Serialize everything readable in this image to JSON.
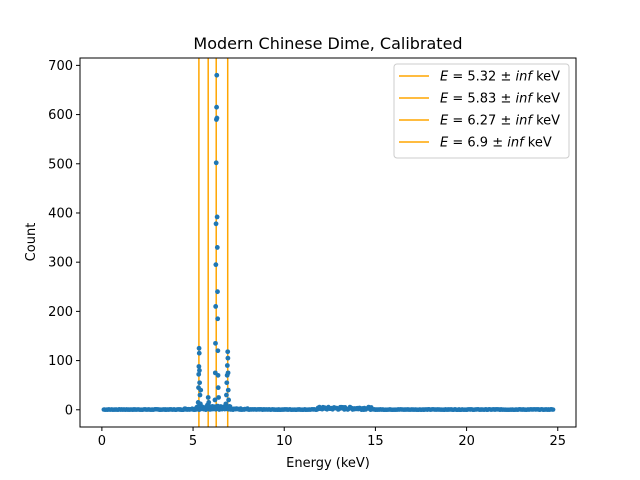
{
  "chart_data": {
    "type": "scatter",
    "title": "Modern Chinese Dime, Calibrated",
    "xlabel": "Energy (keV)",
    "ylabel": "Count",
    "xlim": [
      -1.2,
      26.0
    ],
    "ylim": [
      -35,
      715
    ],
    "xticks": [
      0,
      5,
      10,
      15,
      20,
      25
    ],
    "yticks": [
      0,
      100,
      200,
      300,
      400,
      500,
      600,
      700
    ],
    "grid": false,
    "legend_position": "top-right",
    "point_color": "#1f77b4",
    "line_color": "#ffa500",
    "vlines": [
      {
        "x": 5.32,
        "label": "E = 5.32 ± inf keV"
      },
      {
        "x": 5.83,
        "label": "E = 5.83 ± inf keV"
      },
      {
        "x": 6.27,
        "label": "E = 6.27 ± inf keV"
      },
      {
        "x": 6.9,
        "label": "E = 6.9 ± inf keV"
      }
    ],
    "peak_points": [
      {
        "x": 5.28,
        "y": 15
      },
      {
        "x": 5.3,
        "y": 45
      },
      {
        "x": 5.31,
        "y": 72
      },
      {
        "x": 5.32,
        "y": 88
      },
      {
        "x": 5.33,
        "y": 125
      },
      {
        "x": 5.34,
        "y": 115
      },
      {
        "x": 5.35,
        "y": 80
      },
      {
        "x": 5.36,
        "y": 55
      },
      {
        "x": 5.38,
        "y": 30
      },
      {
        "x": 5.4,
        "y": 12
      },
      {
        "x": 5.42,
        "y": 40
      },
      {
        "x": 5.8,
        "y": 10
      },
      {
        "x": 5.83,
        "y": 25
      },
      {
        "x": 5.86,
        "y": 15
      },
      {
        "x": 6.2,
        "y": 20
      },
      {
        "x": 6.22,
        "y": 75
      },
      {
        "x": 6.23,
        "y": 135
      },
      {
        "x": 6.24,
        "y": 210
      },
      {
        "x": 6.25,
        "y": 295
      },
      {
        "x": 6.26,
        "y": 378
      },
      {
        "x": 6.27,
        "y": 502
      },
      {
        "x": 6.28,
        "y": 590
      },
      {
        "x": 6.29,
        "y": 615
      },
      {
        "x": 6.3,
        "y": 680
      },
      {
        "x": 6.31,
        "y": 593
      },
      {
        "x": 6.32,
        "y": 392
      },
      {
        "x": 6.33,
        "y": 330
      },
      {
        "x": 6.34,
        "y": 240
      },
      {
        "x": 6.35,
        "y": 185
      },
      {
        "x": 6.36,
        "y": 120
      },
      {
        "x": 6.37,
        "y": 70
      },
      {
        "x": 6.38,
        "y": 45
      },
      {
        "x": 6.4,
        "y": 25
      },
      {
        "x": 6.8,
        "y": 12
      },
      {
        "x": 6.83,
        "y": 30
      },
      {
        "x": 6.85,
        "y": 55
      },
      {
        "x": 6.87,
        "y": 70
      },
      {
        "x": 6.88,
        "y": 90
      },
      {
        "x": 6.9,
        "y": 118
      },
      {
        "x": 6.91,
        "y": 105
      },
      {
        "x": 6.92,
        "y": 75
      },
      {
        "x": 6.93,
        "y": 40
      },
      {
        "x": 6.95,
        "y": 20
      }
    ]
  },
  "legend": {
    "items": [
      {
        "prefix": "E = ",
        "value": "5.32",
        "sep": " ± ",
        "err": "inf",
        "unit": " keV"
      },
      {
        "prefix": "E = ",
        "value": "5.83",
        "sep": " ± ",
        "err": "inf",
        "unit": " keV"
      },
      {
        "prefix": "E = ",
        "value": "6.27",
        "sep": " ± ",
        "err": "inf",
        "unit": " keV"
      },
      {
        "prefix": "E = ",
        "value": "6.9",
        "sep": " ± ",
        "err": "inf",
        "unit": " keV"
      }
    ]
  }
}
